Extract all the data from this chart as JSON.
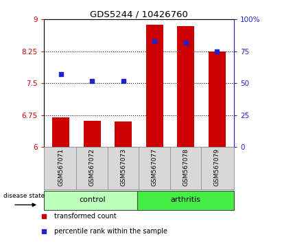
{
  "title": "GDS5244 / 10426760",
  "samples": [
    "GSM567071",
    "GSM567072",
    "GSM567073",
    "GSM567077",
    "GSM567078",
    "GSM567079"
  ],
  "bar_values": [
    6.7,
    6.62,
    6.6,
    8.88,
    8.85,
    8.25
  ],
  "bar_bottom": 6.0,
  "percentile_values": [
    57,
    52,
    52,
    83,
    82,
    75
  ],
  "left_ylim": [
    6,
    9
  ],
  "right_ylim": [
    0,
    100
  ],
  "left_yticks": [
    6,
    6.75,
    7.5,
    8.25,
    9
  ],
  "right_yticks": [
    0,
    25,
    50,
    75,
    100
  ],
  "right_yticklabels": [
    "0",
    "25",
    "50",
    "75",
    "100%"
  ],
  "left_yticklabels": [
    "6",
    "6.75",
    "7.5",
    "8.25",
    "9"
  ],
  "bar_color": "#cc0000",
  "dot_color": "#2222cc",
  "group_labels": [
    "control",
    "arthritis"
  ],
  "group_ranges": [
    [
      0,
      3
    ],
    [
      3,
      6
    ]
  ],
  "group_color_control": "#bbffbb",
  "group_color_arthritis": "#44ee44",
  "disease_state_label": "disease state",
  "legend_bar_label": "transformed count",
  "legend_dot_label": "percentile rank within the sample",
  "background_color": "#d8d8d8",
  "plot_bg_color": "#ffffff"
}
